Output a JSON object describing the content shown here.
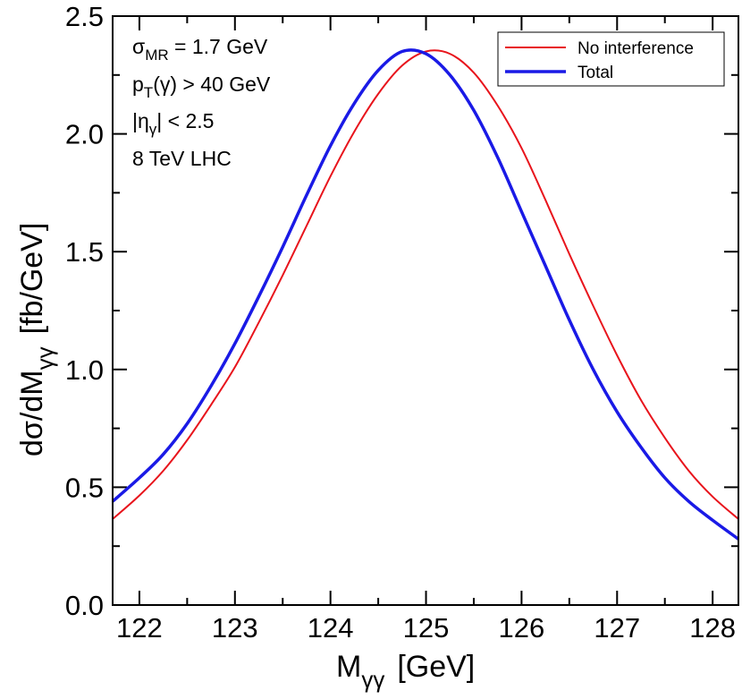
{
  "chart_data": {
    "type": "line",
    "xlabel": {
      "main": "M",
      "sub": "γγ",
      "unit": "[GeV]"
    },
    "ylabel": {
      "main": "dσ/dM",
      "sub": "γγ",
      "unit": "[fb/GeV]"
    },
    "xlim": [
      121.72,
      128.27
    ],
    "ylim": [
      0.0,
      2.5
    ],
    "x_ticks": [
      122,
      123,
      124,
      125,
      126,
      127,
      128
    ],
    "x_tick_labels": [
      "122",
      "123",
      "124",
      "125",
      "126",
      "127",
      "128"
    ],
    "y_ticks": [
      0.0,
      0.5,
      1.0,
      1.5,
      2.0,
      2.5
    ],
    "y_tick_labels": [
      "0.0",
      "0.5",
      "1.0",
      "1.5",
      "2.0",
      "2.5"
    ],
    "legend_position": "top-right",
    "annotations": {
      "sigma": {
        "main": "σ",
        "sub": "MR",
        "rest": " = 1.7 GeV"
      },
      "pt": {
        "main": "p",
        "sub": "T",
        "rest": "(γ) > 40 GeV"
      },
      "eta": {
        "pre": "|η",
        "sub": "γ",
        "rest": "| < 2.5"
      },
      "lhc": "8 TeV LHC"
    },
    "series": [
      {
        "name": "No interference",
        "color": "#e8141c",
        "width": 2,
        "x": [
          121.72,
          122.0,
          122.25,
          122.5,
          122.75,
          123.0,
          123.25,
          123.5,
          123.75,
          124.0,
          124.25,
          124.5,
          124.75,
          125.0,
          125.25,
          125.5,
          125.75,
          126.0,
          126.25,
          126.5,
          126.75,
          127.0,
          127.25,
          127.5,
          127.75,
          128.0,
          128.27
        ],
        "values": [
          0.365,
          0.465,
          0.57,
          0.7,
          0.85,
          1.01,
          1.2,
          1.4,
          1.61,
          1.82,
          2.01,
          2.17,
          2.29,
          2.35,
          2.34,
          2.26,
          2.12,
          1.94,
          1.72,
          1.49,
          1.27,
          1.06,
          0.87,
          0.71,
          0.57,
          0.46,
          0.365
        ]
      },
      {
        "name": "Total",
        "color": "#1a1ae6",
        "width": 3.5,
        "x": [
          121.72,
          122.0,
          122.25,
          122.5,
          122.75,
          123.0,
          123.25,
          123.5,
          123.75,
          124.0,
          124.25,
          124.5,
          124.75,
          125.0,
          125.25,
          125.5,
          125.75,
          126.0,
          126.25,
          126.5,
          126.75,
          127.0,
          127.25,
          127.5,
          127.75,
          128.0,
          128.27
        ],
        "values": [
          0.44,
          0.54,
          0.64,
          0.77,
          0.93,
          1.11,
          1.31,
          1.52,
          1.74,
          1.95,
          2.13,
          2.27,
          2.35,
          2.34,
          2.25,
          2.1,
          1.9,
          1.67,
          1.44,
          1.21,
          1.0,
          0.82,
          0.67,
          0.54,
          0.44,
          0.36,
          0.28
        ]
      }
    ]
  }
}
